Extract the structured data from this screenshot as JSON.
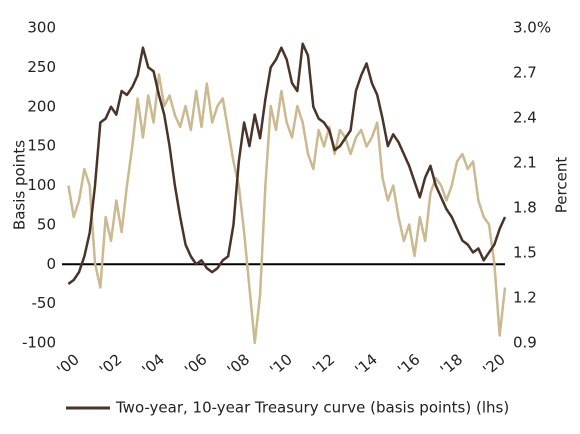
{
  "chart_data": {
    "type": "line",
    "y_label": "Basis points",
    "y2_label": "Percent",
    "x": [
      2000,
      2000.25,
      2000.5,
      2000.75,
      2001,
      2001.25,
      2001.5,
      2001.75,
      2002,
      2002.25,
      2002.5,
      2002.75,
      2003,
      2003.25,
      2003.5,
      2003.75,
      2004,
      2004.25,
      2004.5,
      2004.75,
      2005,
      2005.25,
      2005.5,
      2005.75,
      2006,
      2006.25,
      2006.5,
      2006.75,
      2007,
      2007.25,
      2007.5,
      2007.75,
      2008,
      2008.25,
      2008.5,
      2008.75,
      2009,
      2009.25,
      2009.5,
      2009.75,
      2010,
      2010.25,
      2010.5,
      2010.75,
      2011,
      2011.25,
      2011.5,
      2011.75,
      2012,
      2012.25,
      2012.5,
      2012.75,
      2013,
      2013.25,
      2013.5,
      2013.75,
      2014,
      2014.25,
      2014.5,
      2014.75,
      2015,
      2015.25,
      2015.5,
      2015.75,
      2016,
      2016.25,
      2016.5,
      2016.75,
      2017,
      2017.25,
      2017.5,
      2017.75,
      2018,
      2018.25,
      2018.5,
      2018.75,
      2019,
      2019.25,
      2019.5,
      2019.75,
      2020,
      2020.25,
      2020.5
    ],
    "series": [
      {
        "name": "Two-year, 10-year Treasury curve (basis points) (lhs)",
        "color": "#4a3428",
        "axis": "y",
        "values": [
          -25,
          -20,
          -10,
          10,
          40,
          100,
          180,
          185,
          200,
          190,
          220,
          215,
          225,
          240,
          275,
          250,
          245,
          215,
          190,
          150,
          100,
          60,
          25,
          10,
          0,
          5,
          -5,
          -10,
          -5,
          5,
          10,
          50,
          130,
          180,
          150,
          190,
          160,
          210,
          250,
          260,
          275,
          260,
          230,
          220,
          280,
          265,
          200,
          185,
          180,
          170,
          145,
          150,
          160,
          170,
          220,
          240,
          255,
          230,
          215,
          185,
          150,
          165,
          155,
          140,
          125,
          105,
          85,
          110,
          125,
          100,
          85,
          70,
          60,
          45,
          30,
          25,
          15,
          20,
          5,
          15,
          25,
          45,
          60
        ]
      },
      {
        "color": "#cbb98f",
        "axis": "y2",
        "values": [
          1.95,
          1.74,
          1.85,
          2.06,
          1.95,
          1.43,
          1.27,
          1.74,
          1.58,
          1.85,
          1.64,
          1.95,
          2.21,
          2.53,
          2.27,
          2.55,
          2.37,
          2.69,
          2.48,
          2.55,
          2.42,
          2.34,
          2.48,
          2.32,
          2.58,
          2.34,
          2.63,
          2.37,
          2.48,
          2.53,
          2.32,
          2.11,
          1.95,
          1.64,
          1.27,
          0.9,
          1.22,
          1.95,
          2.48,
          2.32,
          2.58,
          2.37,
          2.27,
          2.48,
          2.37,
          2.16,
          2.06,
          2.32,
          2.21,
          2.34,
          2.16,
          2.32,
          2.27,
          2.16,
          2.27,
          2.32,
          2.21,
          2.27,
          2.37,
          2.0,
          1.85,
          1.95,
          1.74,
          1.58,
          1.69,
          1.48,
          1.74,
          1.58,
          1.9,
          2.0,
          1.95,
          1.85,
          1.95,
          2.11,
          2.16,
          2.06,
          2.11,
          1.85,
          1.74,
          1.69,
          1.43,
          0.95,
          1.27
        ]
      }
    ],
    "xlim": [
      1999.7,
      2020.5
    ],
    "xticks": [
      {
        "value": 2000,
        "label": "'00"
      },
      {
        "value": 2002,
        "label": "'02"
      },
      {
        "value": 2004,
        "label": "'04"
      },
      {
        "value": 2006,
        "label": "'06"
      },
      {
        "value": 2008,
        "label": "'08"
      },
      {
        "value": 2010,
        "label": "'10"
      },
      {
        "value": 2012,
        "label": "'12"
      },
      {
        "value": 2014,
        "label": "'14"
      },
      {
        "value": 2016,
        "label": "'16"
      },
      {
        "value": 2018,
        "label": "'18"
      },
      {
        "value": 2020,
        "label": "'20"
      }
    ],
    "ylim": [
      -100,
      300
    ],
    "yticks": [
      -100,
      -50,
      0,
      50,
      100,
      150,
      200,
      250,
      300
    ],
    "y2lim": [
      0.9,
      3.0
    ],
    "y2ticks": [
      0.9,
      1.2,
      1.5,
      1.8,
      2.1,
      2.4,
      2.7,
      {
        "value": 3.0,
        "label": "3.0%"
      }
    ],
    "zero_line": true,
    "legend": "bottom"
  }
}
